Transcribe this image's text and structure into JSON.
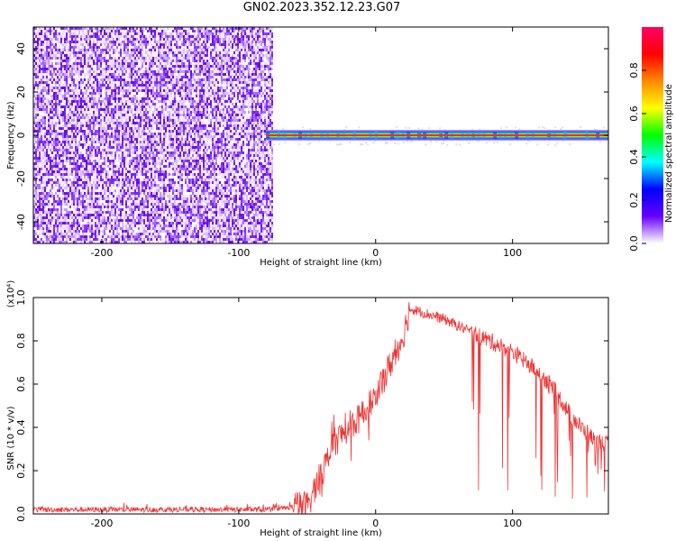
{
  "page": {
    "title": "GN02.2023.352.12.23.G07"
  },
  "chart_data": [
    {
      "type": "heatmap",
      "title": "",
      "xlabel": "Height of straight line (km)",
      "ylabel": "Frequency (Hz)",
      "xlim": [
        -250,
        170
      ],
      "ylim": [
        -50,
        50
      ],
      "xticks": [
        -200,
        -100,
        0,
        100
      ],
      "yticks": [
        -40,
        -20,
        0,
        20,
        40
      ],
      "noise_region_x": [
        -250,
        -80
      ],
      "signal_line": {
        "x": [
          -80,
          170
        ],
        "frequency": 0
      },
      "colorbar": {
        "label": "Normalized spectral amplitude",
        "range": [
          0,
          1
        ],
        "ticks": [
          0.0,
          0.2,
          0.4,
          0.6,
          0.8
        ],
        "colors": [
          "#ffffff",
          "#6600ff",
          "#0000ff",
          "#00ffff",
          "#00ff00",
          "#ffff00",
          "#ff8800",
          "#ff0000",
          "#ff0066"
        ]
      }
    },
    {
      "type": "line",
      "title": "",
      "xlabel": "Height of straight line (km)",
      "ylabel": "SNR (10 * v/v)",
      "yscale_label": "(x10⁴)",
      "xlim": [
        -250,
        170
      ],
      "ylim": [
        0,
        1.0
      ],
      "xticks": [
        -200,
        -100,
        0,
        100
      ],
      "yticks": [
        0.0,
        0.2,
        0.4,
        0.6,
        0.8,
        1.0
      ],
      "color": "#ee3333",
      "series": [
        {
          "name": "",
          "x": [
            -250,
            -200,
            -150,
            -100,
            -75,
            -50,
            -40,
            -30,
            -20,
            -10,
            0,
            10,
            20,
            25,
            30,
            40,
            50,
            60,
            70,
            80,
            90,
            100,
            110,
            120,
            130,
            140,
            150,
            160,
            170
          ],
          "y": [
            0.02,
            0.02,
            0.02,
            0.02,
            0.02,
            0.04,
            0.18,
            0.33,
            0.4,
            0.45,
            0.55,
            0.68,
            0.82,
            0.95,
            0.94,
            0.92,
            0.9,
            0.87,
            0.84,
            0.81,
            0.78,
            0.75,
            0.7,
            0.65,
            0.58,
            0.48,
            0.4,
            0.34,
            0.32
          ]
        }
      ]
    }
  ]
}
